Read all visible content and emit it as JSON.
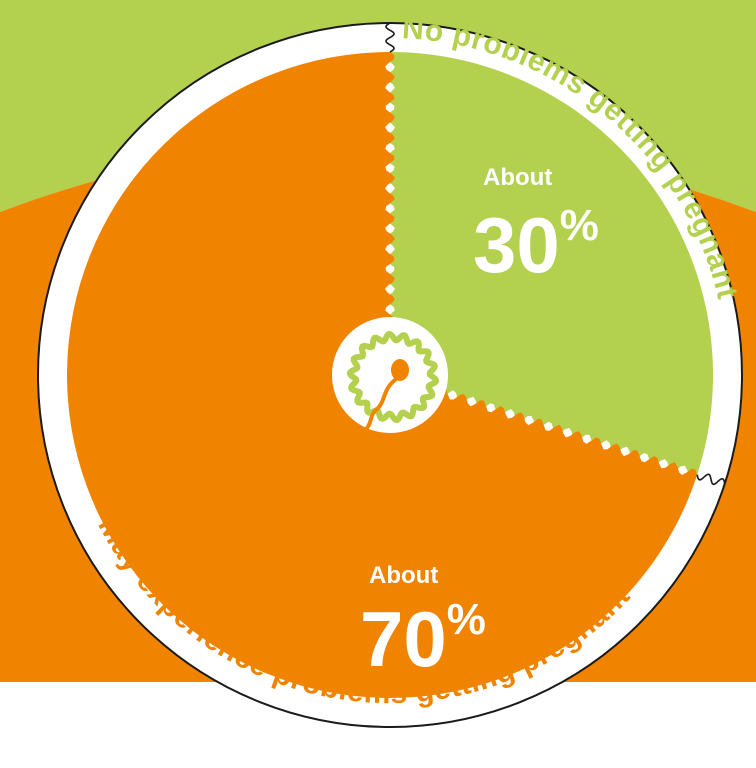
{
  "chart_data": {
    "type": "pie",
    "categories": [
      "No problems getting pregnant",
      "May experience problems getting pregnant"
    ],
    "values": [
      30,
      70
    ],
    "unit": "%",
    "slices": [
      {
        "label": "No problems getting pregnant",
        "prefix": "About",
        "value": 30,
        "display": "30",
        "color": "#b4d04f",
        "label_color": "#b4d04f"
      },
      {
        "label": "May experience problems getting pregnant",
        "prefix": "About",
        "value": 70,
        "display": "70",
        "color": "#f08300",
        "label_color": "#f08300"
      }
    ],
    "legend": "none",
    "grid": false
  },
  "colors": {
    "green": "#b4d04f",
    "orange": "#f08300",
    "ring": "#ffffff",
    "outline": "#1a1a1a"
  },
  "center_icon": "sperm-egg-icon"
}
